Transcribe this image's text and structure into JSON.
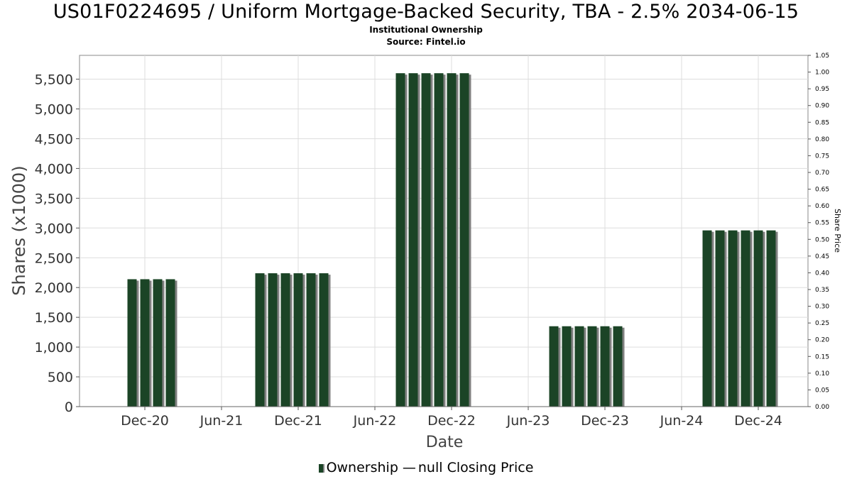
{
  "title": "US01F0224695 / Uniform Mortgage-Backed Security, TBA - 2.5% 2034-06-15",
  "subtitle": "Institutional Ownership",
  "source": "Source: Fintel.io",
  "legend": {
    "ownership_label": "Ownership",
    "price_label": "null Closing Price"
  },
  "colors": {
    "bar": "#1b4426",
    "bar_shadow": "#808080",
    "grid": "#dddddd",
    "axis": "#888888"
  },
  "chart_data": {
    "type": "bar",
    "title": "US01F0224695 / Uniform Mortgage-Backed Security, TBA - 2.5% 2034-06-15",
    "xlabel": "Date",
    "ylabel": "Shares (x1000)",
    "y2label": "Share Price",
    "ylim": [
      0,
      5900
    ],
    "y2lim": [
      0,
      1.05
    ],
    "yticks": [
      "0",
      "500",
      "1,000",
      "1,500",
      "2,000",
      "2,500",
      "3,000",
      "3,500",
      "4,000",
      "4,500",
      "5,000",
      "5,500"
    ],
    "y2ticks": [
      "0.00",
      "0.05",
      "0.10",
      "0.15",
      "0.20",
      "0.25",
      "0.30",
      "0.35",
      "0.40",
      "0.45",
      "0.50",
      "0.55",
      "0.60",
      "0.65",
      "0.70",
      "0.75",
      "0.80",
      "0.85",
      "0.90",
      "0.95",
      "1.00",
      "1.05"
    ],
    "xticks": [
      "Dec-20",
      "Jun-21",
      "Dec-21",
      "Jun-22",
      "Dec-22",
      "Jun-23",
      "Dec-23",
      "Jun-24",
      "Dec-24"
    ],
    "grid": true,
    "legend_position": "bottom-center",
    "series": [
      {
        "name": "Ownership",
        "points": [
          {
            "date": "2020-11",
            "value": 2140
          },
          {
            "date": "2020-12",
            "value": 2140
          },
          {
            "date": "2021-01",
            "value": 2140
          },
          {
            "date": "2021-02",
            "value": 2140
          },
          {
            "date": "2021-09",
            "value": 2240
          },
          {
            "date": "2021-10",
            "value": 2240
          },
          {
            "date": "2021-11",
            "value": 2240
          },
          {
            "date": "2021-12",
            "value": 2240
          },
          {
            "date": "2022-01",
            "value": 2240
          },
          {
            "date": "2022-02",
            "value": 2240
          },
          {
            "date": "2022-08",
            "value": 5600
          },
          {
            "date": "2022-09",
            "value": 5600
          },
          {
            "date": "2022-10",
            "value": 5600
          },
          {
            "date": "2022-11",
            "value": 5600
          },
          {
            "date": "2022-12",
            "value": 5600
          },
          {
            "date": "2023-01",
            "value": 5600
          },
          {
            "date": "2023-08",
            "value": 1350
          },
          {
            "date": "2023-09",
            "value": 1350
          },
          {
            "date": "2023-10",
            "value": 1350
          },
          {
            "date": "2023-11",
            "value": 1350
          },
          {
            "date": "2023-12",
            "value": 1350
          },
          {
            "date": "2024-01",
            "value": 1350
          },
          {
            "date": "2024-08",
            "value": 2960
          },
          {
            "date": "2024-09",
            "value": 2960
          },
          {
            "date": "2024-10",
            "value": 2960
          },
          {
            "date": "2024-11",
            "value": 2960
          },
          {
            "date": "2024-12",
            "value": 2960
          },
          {
            "date": "2025-01",
            "value": 2960
          }
        ]
      }
    ]
  }
}
